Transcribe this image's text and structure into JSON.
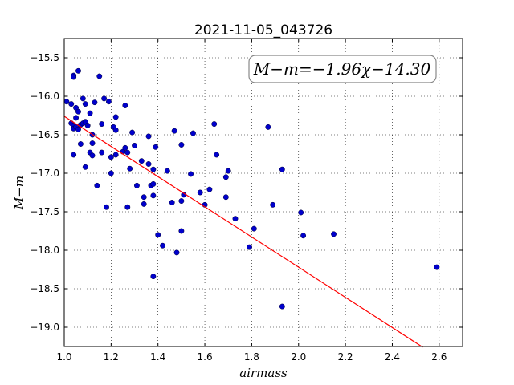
{
  "chart_data": {
    "type": "scatter",
    "title": "2021-11-05_043726",
    "xlabel": "airmass",
    "ylabel": "M−m",
    "xlim": [
      1.0,
      2.7
    ],
    "ylim": [
      -19.25,
      -15.25
    ],
    "y_inverted": true,
    "grid": true,
    "x_ticks": [
      "1.0",
      "1.2",
      "1.4",
      "1.6",
      "1.8",
      "2.0",
      "2.2",
      "2.4",
      "2.6"
    ],
    "y_ticks": [
      "−15.5",
      "−16.0",
      "−16.5",
      "−17.0",
      "−17.5",
      "−18.0",
      "−18.5",
      "−19.0"
    ],
    "annotation": "M−m=−1.96χ−14.30",
    "fit": {
      "slope": -1.96,
      "intercept": -14.3,
      "x_range": [
        1.0,
        2.53
      ],
      "color": "#ff0000"
    },
    "point_color": "#0000cc",
    "points": [
      [
        1.06,
        -15.67
      ],
      [
        1.04,
        -15.73
      ],
      [
        1.04,
        -15.75
      ],
      [
        1.15,
        -15.74
      ],
      [
        1.01,
        -16.07
      ],
      [
        1.03,
        -16.1
      ],
      [
        1.05,
        -16.15
      ],
      [
        1.06,
        -16.2
      ],
      [
        1.05,
        -16.28
      ],
      [
        1.08,
        -16.03
      ],
      [
        1.09,
        -16.1
      ],
      [
        1.11,
        -16.22
      ],
      [
        1.13,
        -16.08
      ],
      [
        1.17,
        -16.03
      ],
      [
        1.19,
        -16.07
      ],
      [
        1.26,
        -16.12
      ],
      [
        1.03,
        -16.35
      ],
      [
        1.04,
        -16.38
      ],
      [
        1.04,
        -16.42
      ],
      [
        1.05,
        -16.4
      ],
      [
        1.06,
        -16.43
      ],
      [
        1.07,
        -16.37
      ],
      [
        1.08,
        -16.35
      ],
      [
        1.09,
        -16.33
      ],
      [
        1.1,
        -16.38
      ],
      [
        1.12,
        -16.5
      ],
      [
        1.16,
        -16.36
      ],
      [
        1.21,
        -16.4
      ],
      [
        1.22,
        -16.44
      ],
      [
        1.22,
        -16.27
      ],
      [
        1.29,
        -16.47
      ],
      [
        1.36,
        -16.52
      ],
      [
        1.47,
        -16.45
      ],
      [
        1.55,
        -16.48
      ],
      [
        1.04,
        -16.76
      ],
      [
        1.07,
        -16.62
      ],
      [
        1.11,
        -16.73
      ],
      [
        1.12,
        -16.61
      ],
      [
        1.12,
        -16.77
      ],
      [
        1.16,
        -16.73
      ],
      [
        1.2,
        -16.79
      ],
      [
        1.22,
        -16.76
      ],
      [
        1.25,
        -16.72
      ],
      [
        1.26,
        -16.67
      ],
      [
        1.27,
        -16.73
      ],
      [
        1.3,
        -16.64
      ],
      [
        1.33,
        -16.84
      ],
      [
        1.36,
        -16.88
      ],
      [
        1.39,
        -16.66
      ],
      [
        1.5,
        -16.63
      ],
      [
        1.65,
        -16.76
      ],
      [
        1.64,
        -16.36
      ],
      [
        1.87,
        -16.4
      ],
      [
        1.09,
        -16.92
      ],
      [
        1.2,
        -17.0
      ],
      [
        1.28,
        -16.94
      ],
      [
        1.38,
        -16.95
      ],
      [
        1.44,
        -16.97
      ],
      [
        1.54,
        -17.01
      ],
      [
        1.7,
        -16.97
      ],
      [
        1.69,
        -17.05
      ],
      [
        1.93,
        -16.95
      ],
      [
        1.14,
        -17.16
      ],
      [
        1.18,
        -17.44
      ],
      [
        1.27,
        -17.44
      ],
      [
        1.31,
        -17.16
      ],
      [
        1.34,
        -17.31
      ],
      [
        1.34,
        -17.4
      ],
      [
        1.37,
        -17.16
      ],
      [
        1.38,
        -17.14
      ],
      [
        1.38,
        -17.29
      ],
      [
        1.46,
        -17.38
      ],
      [
        1.5,
        -17.36
      ],
      [
        1.51,
        -17.28
      ],
      [
        1.58,
        -17.25
      ],
      [
        1.6,
        -17.41
      ],
      [
        1.62,
        -17.21
      ],
      [
        1.69,
        -17.31
      ],
      [
        1.73,
        -17.59
      ],
      [
        1.89,
        -17.41
      ],
      [
        2.01,
        -17.51
      ],
      [
        1.4,
        -17.8
      ],
      [
        1.42,
        -17.94
      ],
      [
        1.48,
        -18.03
      ],
      [
        1.5,
        -17.75
      ],
      [
        1.79,
        -17.96
      ],
      [
        1.81,
        -17.72
      ],
      [
        2.02,
        -17.81
      ],
      [
        2.15,
        -17.79
      ],
      [
        1.38,
        -18.34
      ],
      [
        1.93,
        -18.73
      ],
      [
        2.59,
        -18.22
      ]
    ]
  }
}
